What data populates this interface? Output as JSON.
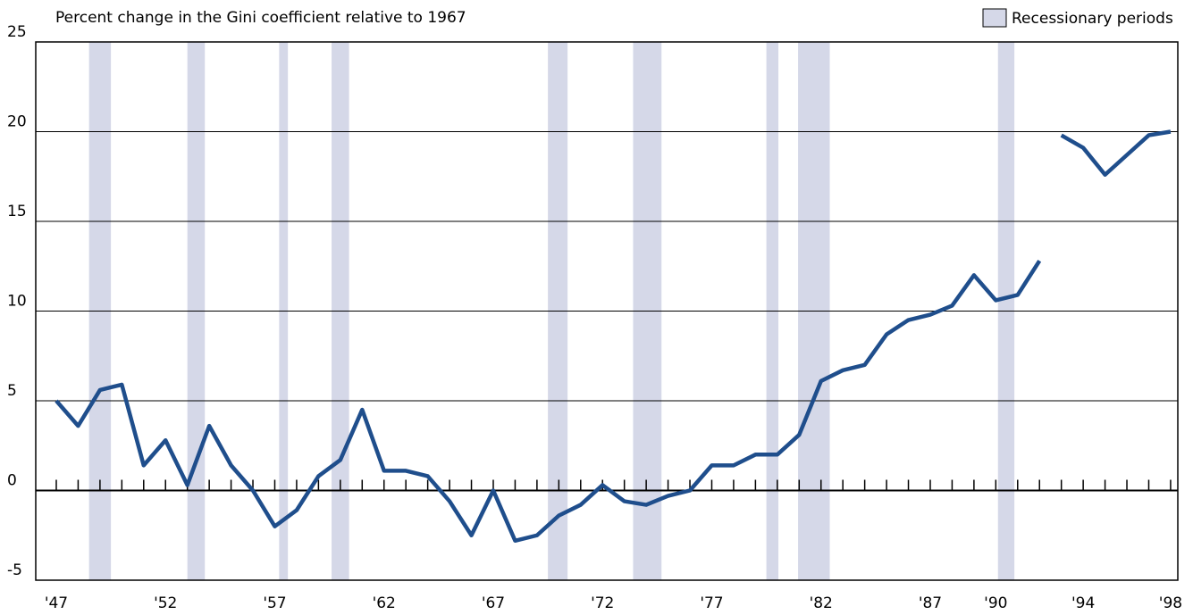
{
  "chart_data": {
    "type": "line",
    "title": "Percent change in the Gini coefficient relative to 1967",
    "series": [
      {
        "color": "#1f4e8c",
        "x": [
          1947,
          1948,
          1949,
          1950,
          1951,
          1952,
          1953,
          1954,
          1955,
          1956,
          1957,
          1958,
          1959,
          1960,
          1961,
          1962,
          1963,
          1964,
          1965,
          1966,
          1967,
          1968,
          1969,
          1970,
          1971,
          1972,
          1973,
          1974,
          1975,
          1976,
          1977,
          1978,
          1979,
          1980,
          1981,
          1982,
          1983,
          1984,
          1985,
          1986,
          1987,
          1988,
          1989,
          1990,
          1991,
          1992
        ],
        "values": [
          5.0,
          3.6,
          5.6,
          5.9,
          1.4,
          2.8,
          0.3,
          3.6,
          1.4,
          0,
          -2.0,
          -1.1,
          0.8,
          1.7,
          4.5,
          1.1,
          1.1,
          0.8,
          -0.6,
          -2.5,
          0,
          -2.8,
          -2.5,
          -1.4,
          -0.8,
          0.3,
          -0.6,
          -0.8,
          -0.3,
          0,
          1.4,
          1.4,
          2.0,
          2.0,
          3.1,
          6.1,
          6.7,
          7.0,
          8.7,
          9.5,
          9.8,
          10.3,
          12.0,
          10.6,
          10.9,
          12.8
        ]
      },
      {
        "color": "#1f4e8c",
        "x": [
          1993,
          1994,
          1995,
          1996,
          1997,
          1998
        ],
        "values": [
          19.8,
          19.1,
          17.6,
          18.7,
          19.8,
          20.0
        ]
      }
    ],
    "recessions": {
      "label": "Recessionary periods",
      "color": "#d5d8e8",
      "periods": [
        [
          1948.5,
          1949.5
        ],
        [
          1953.0,
          1953.8
        ],
        [
          1957.2,
          1957.6
        ],
        [
          1959.6,
          1960.4
        ],
        [
          1969.5,
          1970.4
        ],
        [
          1973.4,
          1974.7
        ],
        [
          1979.5,
          1980.05
        ],
        [
          1980.95,
          1982.4
        ],
        [
          1990.1,
          1990.85
        ]
      ]
    },
    "xlim": [
      1946.06,
      1998.33
    ],
    "ylim": [
      -5,
      25
    ],
    "yticks": [
      -5,
      0,
      5,
      10,
      15,
      20,
      25
    ],
    "xticks": [
      {
        "value": 1947,
        "label": "'47"
      },
      {
        "value": 1952,
        "label": "'52"
      },
      {
        "value": 1957,
        "label": "'57"
      },
      {
        "value": 1962,
        "label": "'62"
      },
      {
        "value": 1967,
        "label": "'67"
      },
      {
        "value": 1972,
        "label": "'72"
      },
      {
        "value": 1977,
        "label": "'77"
      },
      {
        "value": 1982,
        "label": "'82"
      },
      {
        "value": 1987,
        "label": "'87"
      },
      {
        "value": 1990,
        "label": "'90"
      },
      {
        "value": 1994,
        "label": "'94"
      },
      {
        "value": 1998,
        "label": "'98"
      }
    ],
    "xminorticks": [
      1947,
      1948,
      1949,
      1950,
      1951,
      1952,
      1953,
      1954,
      1955,
      1956,
      1957,
      1958,
      1959,
      1960,
      1961,
      1962,
      1963,
      1964,
      1965,
      1966,
      1967,
      1968,
      1969,
      1970,
      1971,
      1972,
      1973,
      1974,
      1975,
      1976,
      1977,
      1978,
      1979,
      1980,
      1981,
      1982,
      1983,
      1984,
      1985,
      1986,
      1987,
      1988,
      1989,
      1990,
      1991,
      1992,
      1993,
      1994,
      1995,
      1996,
      1997,
      1998
    ],
    "grid": true
  }
}
